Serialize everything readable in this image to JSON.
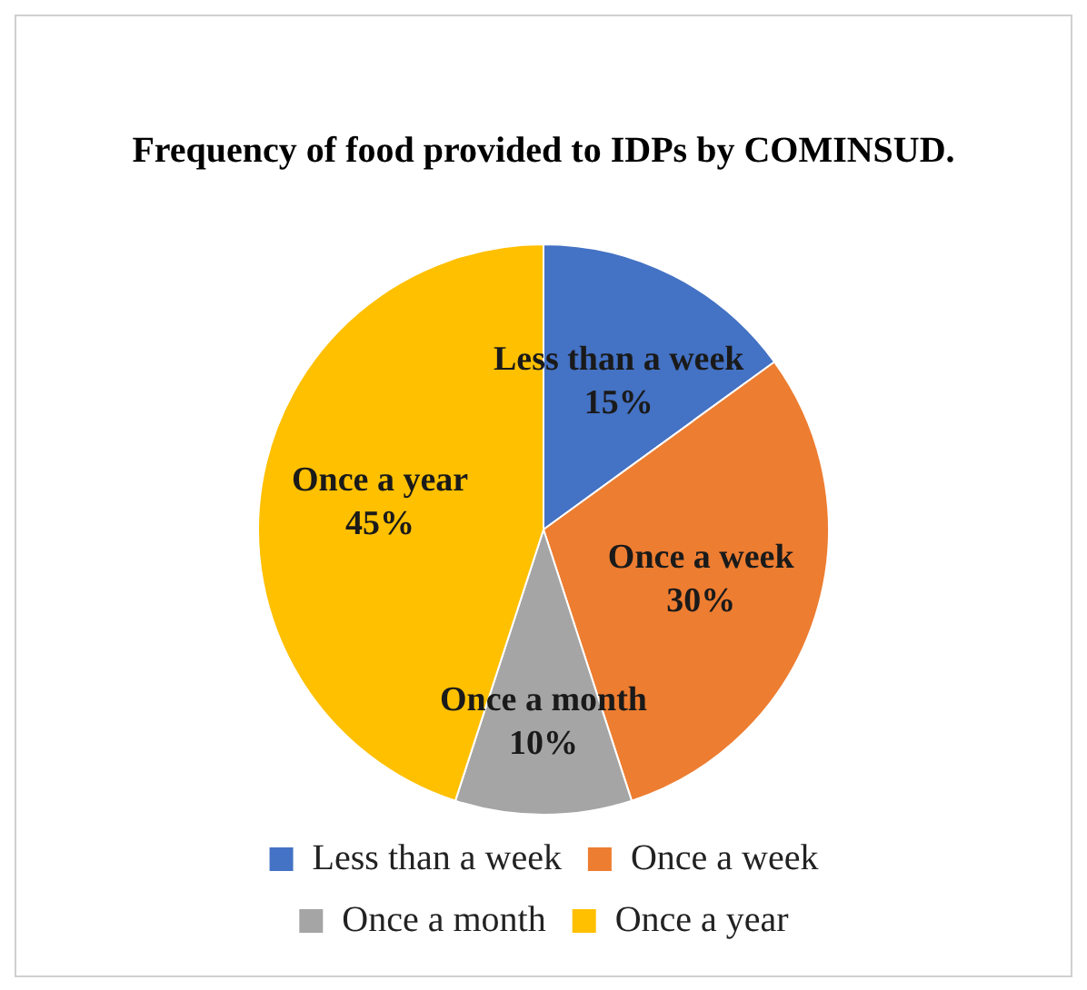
{
  "chart_data": {
    "type": "pie",
    "title": "Frequency of food provided to IDPs by COMINSUD.",
    "categories": [
      "Less than a week",
      "Once a week",
      "Once a month",
      "Once a year"
    ],
    "values": [
      15,
      30,
      10,
      45
    ],
    "colors": [
      "#4472c4",
      "#ed7d31",
      "#a5a5a5",
      "#ffc000"
    ],
    "value_labels": [
      "15%",
      "30%",
      "10%",
      "45%"
    ],
    "legend": "bottom"
  }
}
